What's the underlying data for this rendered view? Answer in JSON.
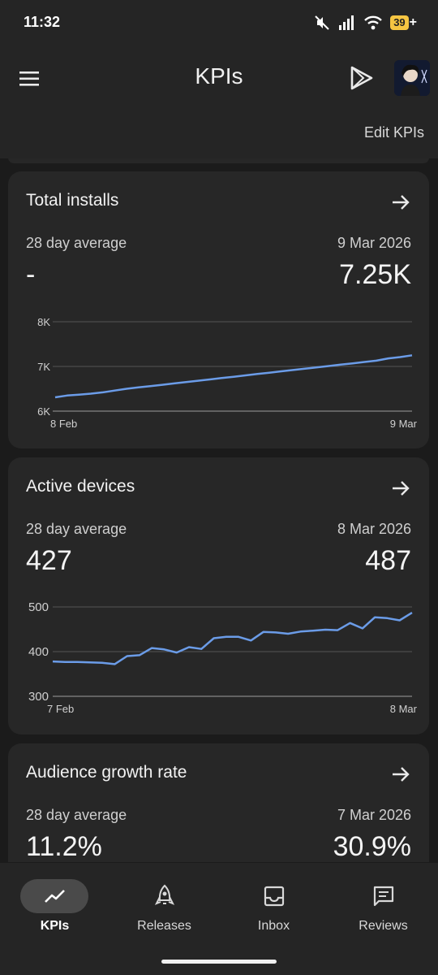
{
  "status_bar": {
    "time": "11:32",
    "battery": "39",
    "battery_charging": "+"
  },
  "app_bar": {
    "title": "KPIs",
    "edit_label": "Edit KPIs"
  },
  "colors": {
    "line": "#6b9ce8",
    "card": "#272727",
    "background": "#1b1b1b"
  },
  "cards": [
    {
      "title": "Total installs",
      "avg_label": "28 day average",
      "avg_value": "-",
      "date": "9 Mar 2026",
      "latest_value": "7.25K",
      "chart_data": {
        "type": "line",
        "y_ticks": [
          "8K",
          "7K",
          "6K"
        ],
        "ylim": [
          6000,
          8000
        ],
        "x_labels": [
          "8 Feb",
          "9 Mar"
        ],
        "values": [
          6310,
          6350,
          6370,
          6390,
          6420,
          6460,
          6500,
          6530,
          6560,
          6590,
          6620,
          6650,
          6680,
          6710,
          6740,
          6770,
          6800,
          6830,
          6860,
          6890,
          6920,
          6950,
          6980,
          7010,
          7040,
          7070,
          7100,
          7130,
          7180,
          7210,
          7250
        ]
      }
    },
    {
      "title": "Active devices",
      "avg_label": "28 day average",
      "avg_value": "427",
      "date": "8 Mar 2026",
      "latest_value": "487",
      "chart_data": {
        "type": "line",
        "y_ticks": [
          "500",
          "400",
          "300"
        ],
        "ylim": [
          300,
          500
        ],
        "x_labels": [
          "7 Feb",
          "8 Mar"
        ],
        "values": [
          378,
          377,
          377,
          376,
          375,
          372,
          390,
          392,
          408,
          405,
          398,
          410,
          406,
          430,
          433,
          433,
          425,
          444,
          443,
          440,
          445,
          447,
          449,
          448,
          464,
          452,
          477,
          475,
          470,
          487
        ]
      }
    },
    {
      "title": "Audience growth rate",
      "avg_label": "28 day average",
      "avg_value": "11.2%",
      "date": "7 Mar 2026",
      "latest_value": "30.9%"
    }
  ],
  "nav": {
    "items": [
      {
        "label": "KPIs",
        "icon": "trending-up-icon",
        "active": true
      },
      {
        "label": "Releases",
        "icon": "rocket-icon",
        "active": false
      },
      {
        "label": "Inbox",
        "icon": "inbox-icon",
        "active": false
      },
      {
        "label": "Reviews",
        "icon": "review-icon",
        "active": false
      }
    ]
  }
}
